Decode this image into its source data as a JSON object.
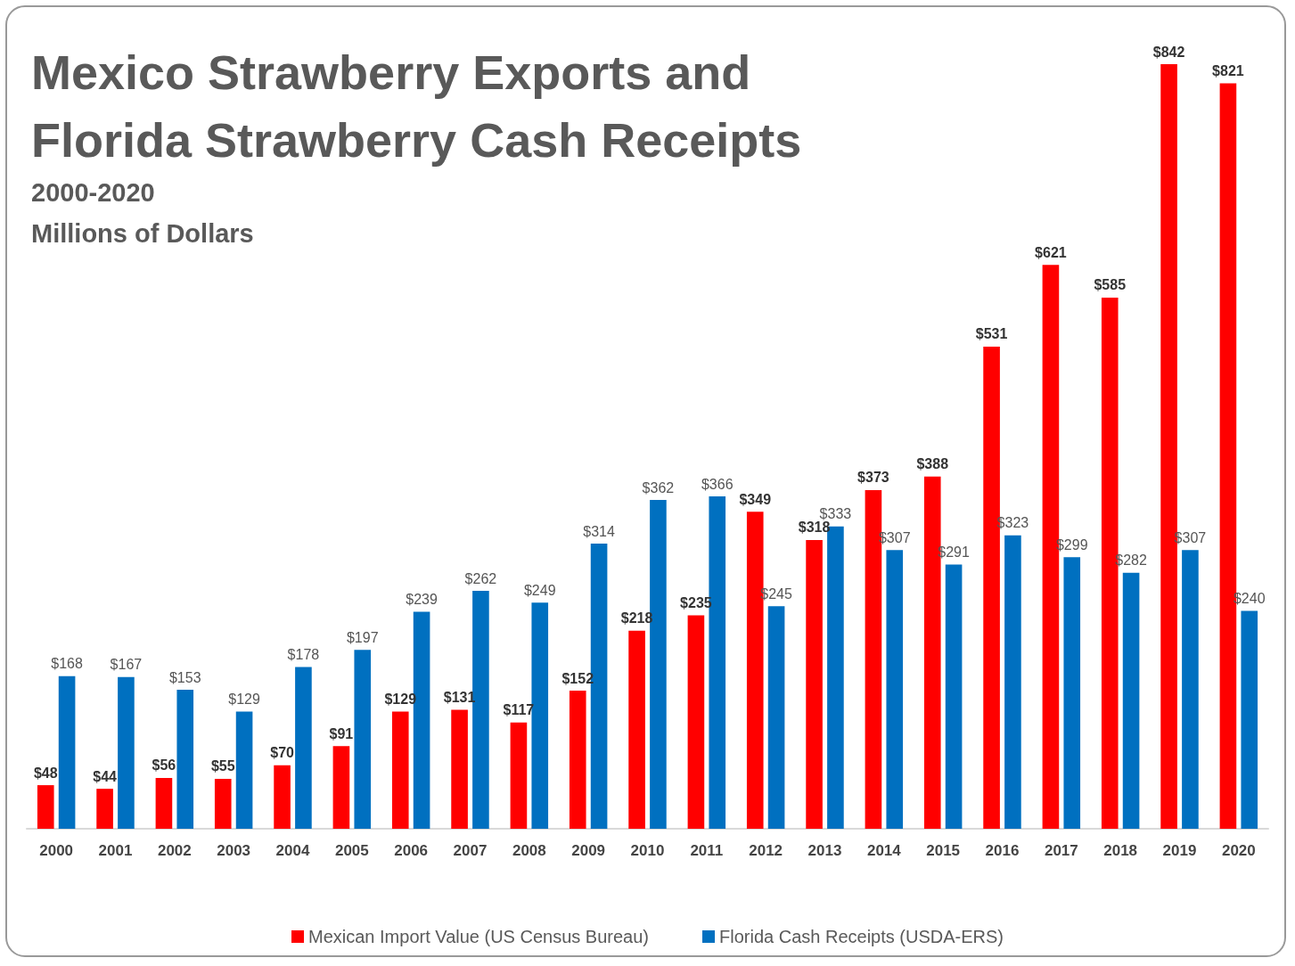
{
  "chart_data": {
    "type": "bar",
    "title": "Mexico Strawberry Exports and Florida Strawberry Cash Receipts",
    "subtitle": "2000-2020",
    "annotations": [
      "Millions of Dollars"
    ],
    "categories": [
      "2000",
      "2001",
      "2002",
      "2003",
      "2004",
      "2005",
      "2006",
      "2007",
      "2008",
      "2009",
      "2010",
      "2011",
      "2012",
      "2013",
      "2014",
      "2015",
      "2016",
      "2017",
      "2018",
      "2019",
      "2020"
    ],
    "series": [
      {
        "name": "Mexican Import Value (US Census Bureau)",
        "color": "#ff0000",
        "values": [
          48,
          44,
          56,
          55,
          70,
          91,
          129,
          131,
          117,
          152,
          218,
          235,
          349,
          318,
          373,
          388,
          531,
          621,
          585,
          842,
          821
        ],
        "value_labels": [
          "$48",
          "$44",
          "$56",
          "$55",
          "$70",
          "$91",
          "$129",
          "$131",
          "$117",
          "$152",
          "$218",
          "$235",
          "$349",
          "$318",
          "$373",
          "$388",
          "$531",
          "$621",
          "$585",
          "$842",
          "$821"
        ]
      },
      {
        "name": "Florida Cash Receipts (USDA-ERS)",
        "color": "#0070c0",
        "values": [
          168,
          167,
          153,
          129,
          178,
          197,
          239,
          262,
          249,
          314,
          362,
          366,
          245,
          333,
          307,
          291,
          323,
          299,
          282,
          307,
          240
        ],
        "value_labels": [
          "$168",
          "$167",
          "$153",
          "$129",
          "$178",
          "$197",
          "$239",
          "$262",
          "$249",
          "$314",
          "$362",
          "$366",
          "$245",
          "$333",
          "$307",
          "$291",
          "$323",
          "$299",
          "$282",
          "$307",
          "$240"
        ]
      }
    ],
    "legend": "bottom"
  }
}
